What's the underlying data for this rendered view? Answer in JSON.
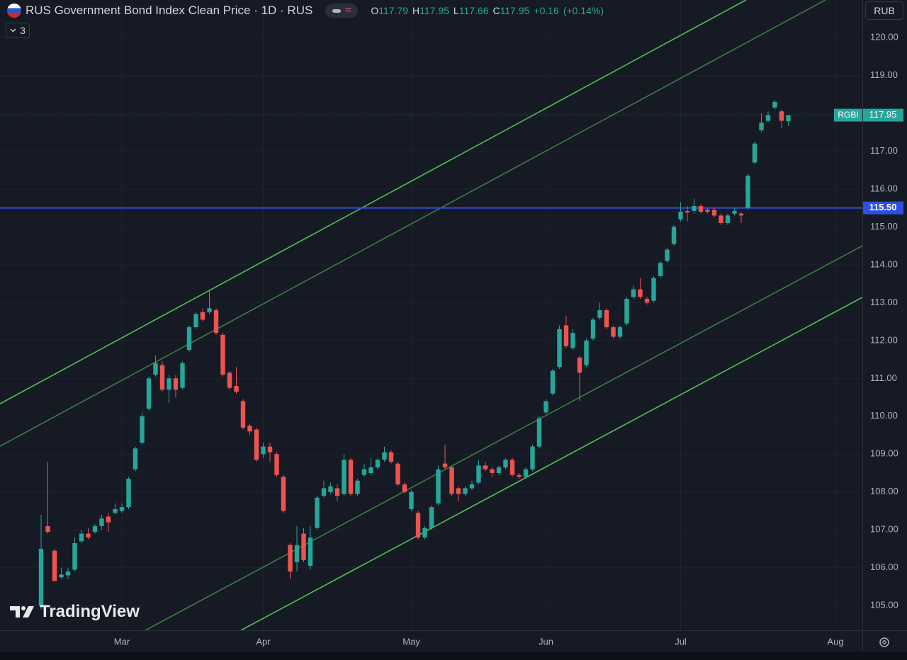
{
  "chart_data": {
    "type": "candlestick",
    "title": "RUS Government Bond Index Clean Price · 1D · RUS",
    "indicator_count": "3",
    "currency": "RUB",
    "watermark": "TradingView",
    "ohlc": [
      {
        "name": "O",
        "value": 117.79
      },
      {
        "name": "H",
        "value": 117.95
      },
      {
        "name": "L",
        "value": 117.66
      },
      {
        "name": "C",
        "value": 117.95
      }
    ],
    "change": {
      "value": 0.16,
      "label": "+0.16"
    },
    "change_pct": {
      "value": 0.14,
      "label": "(+0.14%)"
    },
    "up_color": "#26a69a",
    "down_color": "#ef5350",
    "series": [
      {
        "name": "RGBI",
        "open": [
          105.0,
          107.1,
          106.45,
          105.75,
          105.8,
          105.95,
          106.7,
          106.9,
          106.95,
          107.1,
          107.35,
          107.45,
          107.5,
          107.6,
          108.6,
          109.3,
          110.2,
          111.1,
          111.35,
          110.7,
          111.0,
          110.75,
          111.75,
          112.35,
          112.75,
          112.75,
          112.8,
          112.15,
          111.15,
          110.8,
          110.4,
          109.75,
          109.65,
          109.0,
          109.2,
          109.0,
          108.4,
          106.6,
          106.15,
          106.9,
          106.05,
          107.05,
          107.9,
          108.0,
          108.1,
          107.95,
          108.85,
          107.95,
          108.45,
          108.5,
          108.65,
          108.85,
          109.05,
          108.75,
          108.2,
          107.55,
          107.45,
          106.8,
          107.05,
          107.7,
          108.75,
          108.65,
          108.1,
          107.95,
          108.1,
          108.25,
          108.7,
          108.6,
          108.5,
          108.65,
          108.85,
          108.45,
          108.4,
          108.6,
          109.2,
          110.1,
          110.6,
          111.3,
          112.4,
          111.8,
          111.55,
          111.35,
          112.05,
          112.6,
          112.8,
          112.35,
          112.1,
          112.45,
          113.15,
          113.35,
          113.1,
          113.05,
          113.7,
          114.1,
          114.55,
          115.2,
          115.42,
          115.42,
          115.55,
          115.45,
          115.45,
          115.3,
          115.1,
          115.35,
          115.35,
          115.5,
          116.7,
          117.55,
          117.8,
          118.15,
          118.05,
          117.79
        ],
        "high": [
          107.4,
          108.8,
          106.5,
          106.0,
          106.0,
          106.8,
          107.0,
          107.05,
          107.15,
          107.4,
          107.45,
          107.7,
          107.7,
          108.4,
          109.2,
          110.1,
          111.05,
          111.6,
          111.45,
          111.1,
          111.1,
          111.45,
          112.4,
          112.75,
          112.85,
          113.3,
          112.85,
          112.2,
          111.2,
          111.3,
          110.45,
          109.8,
          109.7,
          109.3,
          109.3,
          109.05,
          108.45,
          106.65,
          107.1,
          107.05,
          107.1,
          107.9,
          108.3,
          108.25,
          108.2,
          109.0,
          108.9,
          108.35,
          108.75,
          108.9,
          108.9,
          109.2,
          109.1,
          108.8,
          108.25,
          108.05,
          107.5,
          107.1,
          107.65,
          108.7,
          109.25,
          108.7,
          108.15,
          108.15,
          108.3,
          108.85,
          108.8,
          108.65,
          108.7,
          108.9,
          108.9,
          108.5,
          108.65,
          109.25,
          110.0,
          110.45,
          111.25,
          112.4,
          112.65,
          112.3,
          111.6,
          112.05,
          112.6,
          113.0,
          112.85,
          112.4,
          112.4,
          113.15,
          113.45,
          113.65,
          113.15,
          113.7,
          114.1,
          114.45,
          115.05,
          115.65,
          115.55,
          115.75,
          115.6,
          115.5,
          115.5,
          115.35,
          115.35,
          115.5,
          115.4,
          116.4,
          117.25,
          118.0,
          118.05,
          118.35,
          118.1,
          117.95
        ],
        "low": [
          104.9,
          106.9,
          105.65,
          105.7,
          105.7,
          105.9,
          106.65,
          106.75,
          106.9,
          107.0,
          106.95,
          107.4,
          107.45,
          107.55,
          108.55,
          109.25,
          110.15,
          111.05,
          110.65,
          110.35,
          110.5,
          110.7,
          111.7,
          112.3,
          112.5,
          112.7,
          112.15,
          111.05,
          110.7,
          110.6,
          109.65,
          109.5,
          108.8,
          108.9,
          108.8,
          108.4,
          107.45,
          105.7,
          105.9,
          106.15,
          105.95,
          107.0,
          107.85,
          107.95,
          107.75,
          107.9,
          107.9,
          107.9,
          108.4,
          108.45,
          108.6,
          108.8,
          108.75,
          108.15,
          107.95,
          107.5,
          106.75,
          106.75,
          107.0,
          107.65,
          108.6,
          107.9,
          107.75,
          107.9,
          108.05,
          108.2,
          108.55,
          108.4,
          108.45,
          108.6,
          108.4,
          108.35,
          108.35,
          108.55,
          109.15,
          110.05,
          110.55,
          111.25,
          111.8,
          111.75,
          110.4,
          111.3,
          112.0,
          112.55,
          112.3,
          112.05,
          112.05,
          112.4,
          113.1,
          113.1,
          112.95,
          113.0,
          113.65,
          114.05,
          114.5,
          115.15,
          115.15,
          115.35,
          115.35,
          115.35,
          115.25,
          115.05,
          115.05,
          115.3,
          115.1,
          115.45,
          116.65,
          117.5,
          117.75,
          118.1,
          117.6,
          117.66
        ],
        "close": [
          106.5,
          106.95,
          105.65,
          105.82,
          105.9,
          106.65,
          106.9,
          106.8,
          107.1,
          107.3,
          107.2,
          107.55,
          107.6,
          108.35,
          109.15,
          110.0,
          111.0,
          111.4,
          110.7,
          111.0,
          110.7,
          111.4,
          112.35,
          112.7,
          112.55,
          112.85,
          112.2,
          111.1,
          110.75,
          110.65,
          109.7,
          109.6,
          108.85,
          109.2,
          109.05,
          108.45,
          107.5,
          105.9,
          106.6,
          106.2,
          106.8,
          107.85,
          108.1,
          108.15,
          107.9,
          108.85,
          107.95,
          108.3,
          108.6,
          108.65,
          108.85,
          109.05,
          108.8,
          108.2,
          108.0,
          108.0,
          106.8,
          107.05,
          107.6,
          108.6,
          108.65,
          107.95,
          107.95,
          108.1,
          108.2,
          108.7,
          108.6,
          108.5,
          108.65,
          108.85,
          108.45,
          108.4,
          108.6,
          109.2,
          109.95,
          110.4,
          111.2,
          112.3,
          111.85,
          112.2,
          111.15,
          112.0,
          112.55,
          112.8,
          112.35,
          112.1,
          112.35,
          113.1,
          113.35,
          113.15,
          113.0,
          113.65,
          114.05,
          114.4,
          115.0,
          115.4,
          115.38,
          115.55,
          115.4,
          115.4,
          115.3,
          115.1,
          115.3,
          115.42,
          115.3,
          116.35,
          117.2,
          117.75,
          117.95,
          118.3,
          117.8,
          117.95
        ]
      }
    ],
    "last_price": {
      "value": 117.95,
      "label": "117.95"
    },
    "hline": {
      "value": 115.5,
      "label": "115.50",
      "color": "#2f4fe0"
    },
    "trendlines": [
      {
        "color": "#4fc24f",
        "x": [
          -6.1,
          104.7
        ],
        "y": [
          110.33,
          120.99
        ]
      },
      {
        "color": "#3b7a45",
        "x": [
          -6.1,
          116.5
        ],
        "y": [
          109.21,
          120.99
        ]
      },
      {
        "color": "#3b7a45",
        "x": [
          15.5,
          122
        ],
        "y": [
          104.35,
          114.5
        ]
      },
      {
        "color": "#4fc24f",
        "x": [
          29.7,
          122
        ],
        "y": [
          104.35,
          113.14
        ]
      }
    ],
    "ylim": [
      104.35,
      120.99
    ],
    "yticks": [
      {
        "value": 105,
        "label": "105.00"
      },
      {
        "value": 106,
        "label": "106.00"
      },
      {
        "value": 107,
        "label": "107.00"
      },
      {
        "value": 108,
        "label": "108.00"
      },
      {
        "value": 109,
        "label": "109.00"
      },
      {
        "value": 110,
        "label": "110.00"
      },
      {
        "value": 111,
        "label": "111.00"
      },
      {
        "value": 112,
        "label": "112.00"
      },
      {
        "value": 113,
        "label": "113.00"
      },
      {
        "value": 114,
        "label": "114.00"
      },
      {
        "value": 115,
        "label": "115.00"
      },
      {
        "value": 116,
        "label": "116.00"
      },
      {
        "value": 117,
        "label": "117.00"
      },
      {
        "value": 118,
        "label": "118.00"
      },
      {
        "value": 119,
        "label": "119.00"
      },
      {
        "value": 120,
        "label": "120.00"
      }
    ],
    "xticks": [
      {
        "value": 12,
        "label": "Mar"
      },
      {
        "value": 33,
        "label": "Apr"
      },
      {
        "value": 55,
        "label": "May"
      },
      {
        "value": 75,
        "label": "Jun"
      },
      {
        "value": 95,
        "label": "Jul"
      },
      {
        "value": 118,
        "label": "Aug"
      }
    ],
    "grid": true
  }
}
